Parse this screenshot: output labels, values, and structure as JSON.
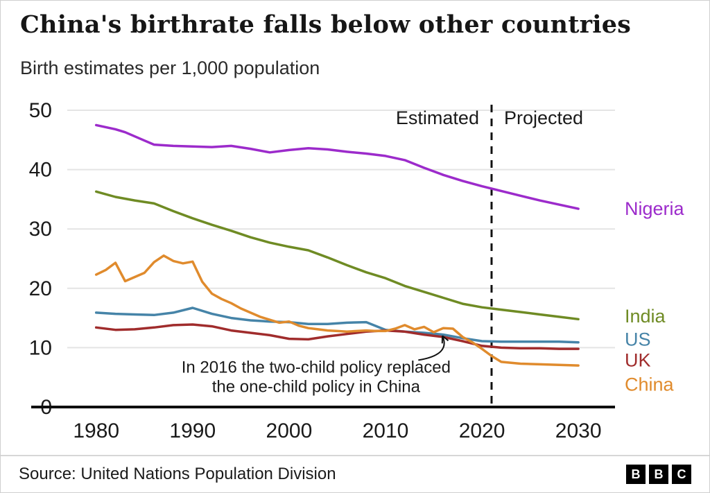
{
  "header": {
    "title": "China's birthrate falls below other countries",
    "subtitle": "Birth estimates per 1,000 population"
  },
  "chart_data": {
    "type": "line",
    "title": "China's birthrate falls below other countries",
    "subtitle": "Birth estimates per 1,000 population",
    "xlabel": "",
    "ylabel": "",
    "xlim": [
      1977,
      2033.8
    ],
    "ylim": [
      0,
      50
    ],
    "x_ticks": [
      1980,
      1990,
      2000,
      2010,
      2020,
      2030
    ],
    "y_ticks": [
      0,
      10,
      20,
      30,
      40,
      50
    ],
    "grid": "horizontal",
    "legend_position": "right-of-line-ends",
    "divider_x": 2021,
    "region_labels": {
      "left": "Estimated",
      "right": "Projected"
    },
    "annotation": {
      "lines": [
        "In 2016 the two-child policy replaced",
        "the one-child policy in China"
      ],
      "x": 2002.8,
      "y": 5.8,
      "arrow": {
        "from": [
          2013.4,
          7.9
        ],
        "control": [
          2016.8,
          8.8
        ],
        "to": [
          2015.9,
          12.0
        ]
      }
    },
    "series": [
      {
        "name": "Nigeria",
        "color": "#9c2bcb",
        "label_y": 33.4,
        "x": [
          1980,
          1982,
          1983,
          1985,
          1986,
          1988,
          1990,
          1992,
          1994,
          1996,
          1998,
          2000,
          2002,
          2004,
          2006,
          2008,
          2010,
          2012,
          2014,
          2016,
          2018,
          2020,
          2022,
          2024,
          2026,
          2028,
          2030
        ],
        "values": [
          47.5,
          46.8,
          46.3,
          44.9,
          44.2,
          44.0,
          43.9,
          43.8,
          44.0,
          43.5,
          42.9,
          43.3,
          43.6,
          43.4,
          43.0,
          42.7,
          42.3,
          41.6,
          40.3,
          39.1,
          38.1,
          37.2,
          36.4,
          35.6,
          34.8,
          34.1,
          33.4
        ]
      },
      {
        "name": "India",
        "color": "#6f8b24",
        "label_y": 15.3,
        "x": [
          1980,
          1982,
          1984,
          1986,
          1988,
          1990,
          1992,
          1994,
          1996,
          1998,
          2000,
          2002,
          2004,
          2006,
          2008,
          2010,
          2012,
          2014,
          2016,
          2018,
          2020,
          2022,
          2024,
          2026,
          2028,
          2030
        ],
        "values": [
          36.3,
          35.4,
          34.8,
          34.3,
          33.0,
          31.8,
          30.7,
          29.7,
          28.6,
          27.7,
          27.0,
          26.4,
          25.2,
          23.9,
          22.7,
          21.7,
          20.4,
          19.4,
          18.4,
          17.4,
          16.8,
          16.4,
          16.0,
          15.6,
          15.2,
          14.8
        ]
      },
      {
        "name": "US",
        "color": "#4684a8",
        "label_y": 11.4,
        "x": [
          1980,
          1982,
          1984,
          1986,
          1988,
          1990,
          1992,
          1994,
          1996,
          1998,
          2000,
          2002,
          2004,
          2006,
          2008,
          2010,
          2012,
          2014,
          2016,
          2018,
          2020,
          2022,
          2024,
          2026,
          2028,
          2030
        ],
        "values": [
          15.9,
          15.7,
          15.6,
          15.5,
          15.9,
          16.7,
          15.7,
          15.0,
          14.6,
          14.4,
          14.3,
          14.0,
          14.0,
          14.2,
          14.3,
          13.0,
          12.7,
          12.5,
          12.2,
          11.6,
          11.1,
          11.0,
          11.0,
          11.0,
          11.0,
          10.9
        ]
      },
      {
        "name": "UK",
        "color": "#a02c2c",
        "label_y": 7.9,
        "x": [
          1980,
          1982,
          1984,
          1986,
          1988,
          1990,
          1992,
          1994,
          1996,
          1998,
          2000,
          2002,
          2004,
          2006,
          2008,
          2010,
          2012,
          2014,
          2016,
          2018,
          2020,
          2022,
          2024,
          2026,
          2028,
          2030
        ],
        "values": [
          13.4,
          13.0,
          13.1,
          13.4,
          13.8,
          13.9,
          13.6,
          12.9,
          12.5,
          12.1,
          11.5,
          11.4,
          11.9,
          12.3,
          12.7,
          12.9,
          12.7,
          12.2,
          11.8,
          11.1,
          10.3,
          10.0,
          9.9,
          9.9,
          9.8,
          9.8
        ]
      },
      {
        "name": "China",
        "color": "#e08b2d",
        "label_y": 3.8,
        "x": [
          1980,
          1981,
          1982,
          1983,
          1984,
          1985,
          1986,
          1987,
          1988,
          1989,
          1990,
          1991,
          1992,
          1993,
          1994,
          1995,
          1996,
          1997,
          1998,
          1999,
          2000,
          2001,
          2002,
          2003,
          2004,
          2005,
          2006,
          2007,
          2008,
          2009,
          2010,
          2011,
          2012,
          2013,
          2014,
          2015,
          2016,
          2017,
          2018,
          2019,
          2020,
          2021,
          2022,
          2024,
          2026,
          2028,
          2030
        ],
        "values": [
          22.3,
          23.1,
          24.3,
          21.2,
          21.9,
          22.6,
          24.4,
          25.5,
          24.6,
          24.2,
          24.5,
          21.1,
          19.1,
          18.2,
          17.5,
          16.6,
          15.9,
          15.2,
          14.7,
          14.2,
          14.4,
          13.7,
          13.3,
          13.1,
          12.9,
          12.8,
          12.7,
          12.8,
          12.9,
          12.8,
          12.8,
          13.2,
          13.8,
          13.1,
          13.5,
          12.6,
          13.3,
          13.2,
          11.8,
          10.9,
          9.8,
          8.6,
          7.6,
          7.3,
          7.2,
          7.1,
          7.0
        ]
      }
    ]
  },
  "footer": {
    "source": "Source: United Nations Population Division",
    "logo_letters": [
      "B",
      "B",
      "C"
    ]
  }
}
